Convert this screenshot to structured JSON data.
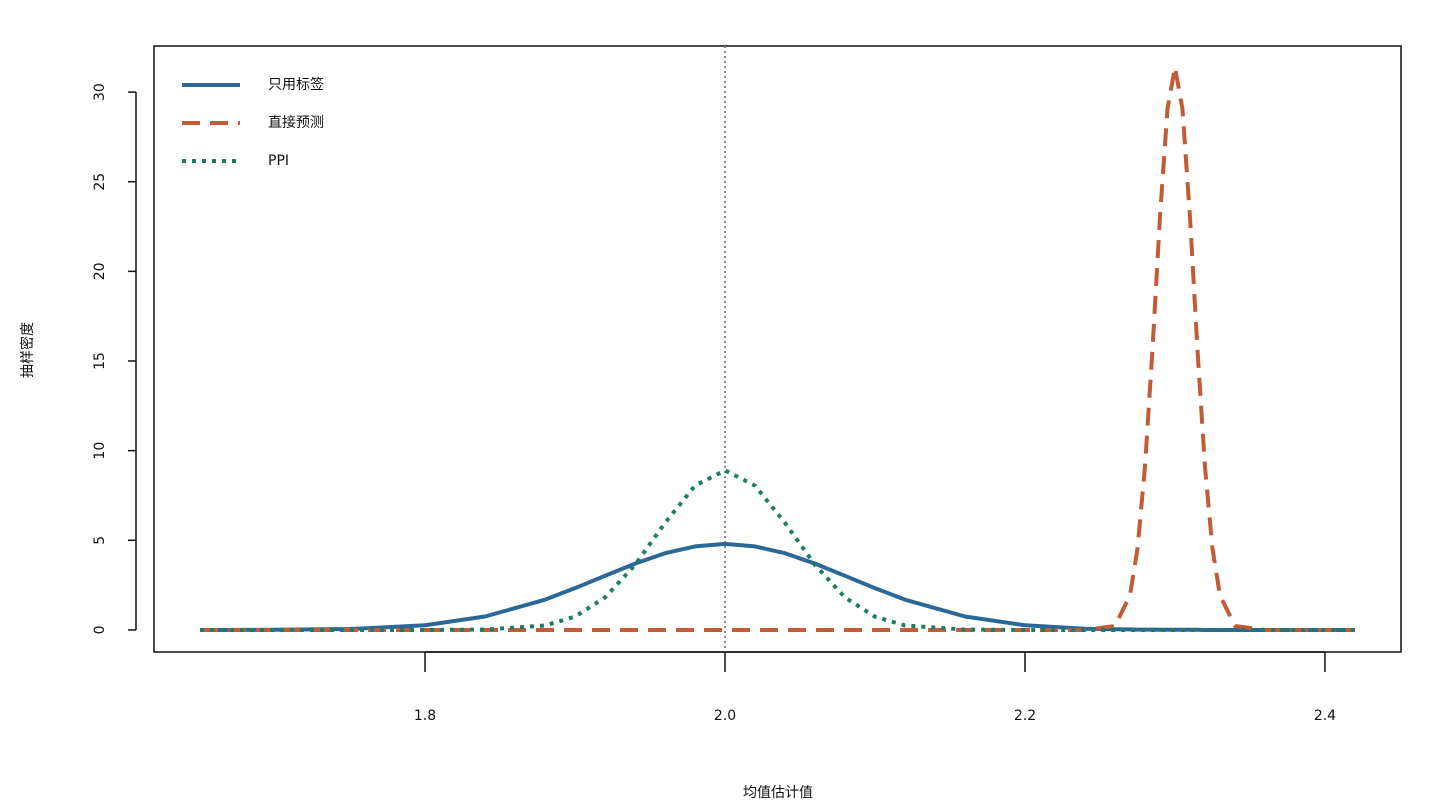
{
  "chart_data": {
    "type": "line",
    "x_label": "均值估计值",
    "y_label": "抽样密度",
    "x": [
      1.65,
      1.7,
      1.75,
      1.8,
      1.84,
      1.88,
      1.9,
      1.92,
      1.94,
      1.96,
      1.98,
      2.0,
      2.02,
      2.04,
      2.06,
      2.08,
      2.1,
      2.12,
      2.16,
      2.2,
      2.24,
      2.26,
      2.27,
      2.275,
      2.28,
      2.285,
      2.29,
      2.295,
      2.3,
      2.305,
      2.31,
      2.315,
      2.32,
      2.325,
      2.33,
      2.34,
      2.36,
      2.42
    ],
    "series": [
      {
        "name": "只用标签",
        "color": "#2b6797",
        "dash": "solid",
        "values": [
          0,
          0.01,
          0.05,
          0.26,
          0.75,
          1.69,
          2.33,
          3.02,
          3.7,
          4.28,
          4.66,
          4.8,
          4.66,
          4.28,
          3.7,
          3.02,
          2.33,
          1.69,
          0.75,
          0.26,
          0.07,
          0.04,
          0.03,
          0.02,
          0.02,
          0.02,
          0.01,
          0.01,
          0.01,
          0.01,
          0.01,
          0.01,
          0,
          0,
          0,
          0,
          0,
          0
        ]
      },
      {
        "name": "直接预测",
        "color": "#c45b37",
        "dash": "dashed",
        "values": [
          0,
          0,
          0,
          0,
          0,
          0,
          0,
          0,
          0,
          0,
          0,
          0,
          0,
          0,
          0,
          0,
          0,
          0,
          0,
          0,
          0,
          0.22,
          1.93,
          4.53,
          9.09,
          15.64,
          23.03,
          29.05,
          31.4,
          29.05,
          23.03,
          15.64,
          9.09,
          4.53,
          1.93,
          0.22,
          0,
          0
        ]
      },
      {
        "name": "PPI",
        "color": "#1f7b67",
        "dash": "dotted",
        "values": [
          0,
          0,
          0,
          0,
          0.02,
          0.25,
          0.74,
          1.81,
          3.63,
          5.97,
          8.05,
          8.9,
          8.05,
          5.97,
          3.63,
          1.81,
          0.74,
          0.25,
          0.02,
          0,
          0,
          0,
          0,
          0,
          0,
          0,
          0,
          0,
          0,
          0,
          0,
          0,
          0,
          0,
          0,
          0,
          0,
          0
        ]
      }
    ],
    "xlim": [
      1.6193,
      2.4507
    ],
    "ylim": [
      -1.23,
      32.57
    ],
    "xticks": [
      1.8,
      {
        "value": 2,
        "label": "2.0"
      },
      2.2,
      2.4
    ],
    "yticks": [
      0,
      5,
      10,
      15,
      20,
      25,
      30
    ],
    "vline": 2,
    "legend": "top-left",
    "grid": false
  }
}
